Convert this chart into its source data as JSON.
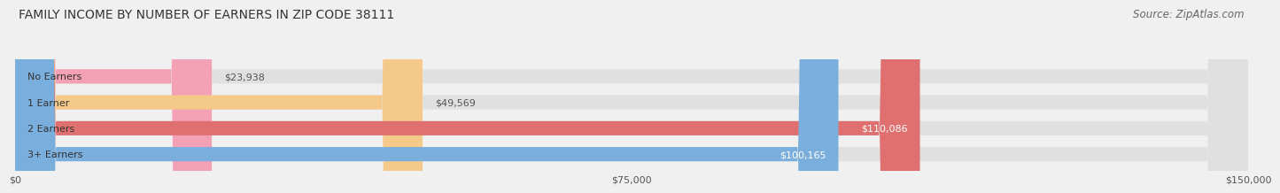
{
  "title": "FAMILY INCOME BY NUMBER OF EARNERS IN ZIP CODE 38111",
  "source": "Source: ZipAtlas.com",
  "categories": [
    "No Earners",
    "1 Earner",
    "2 Earners",
    "3+ Earners"
  ],
  "values": [
    23938,
    49569,
    110086,
    100165
  ],
  "bar_colors": [
    "#f4a0b5",
    "#f5c98a",
    "#e07070",
    "#7aaedd"
  ],
  "value_labels": [
    "$23,938",
    "$49,569",
    "$110,086",
    "$100,165"
  ],
  "xlim": [
    0,
    150000
  ],
  "xticks": [
    0,
    75000,
    150000
  ],
  "xtick_labels": [
    "$0",
    "$75,000",
    "$150,000"
  ],
  "background_color": "#f0f0f0",
  "bar_background_color": "#e0e0e0",
  "title_fontsize": 10,
  "source_fontsize": 8.5,
  "bar_height": 0.55,
  "figsize": [
    14.06,
    2.33
  ]
}
